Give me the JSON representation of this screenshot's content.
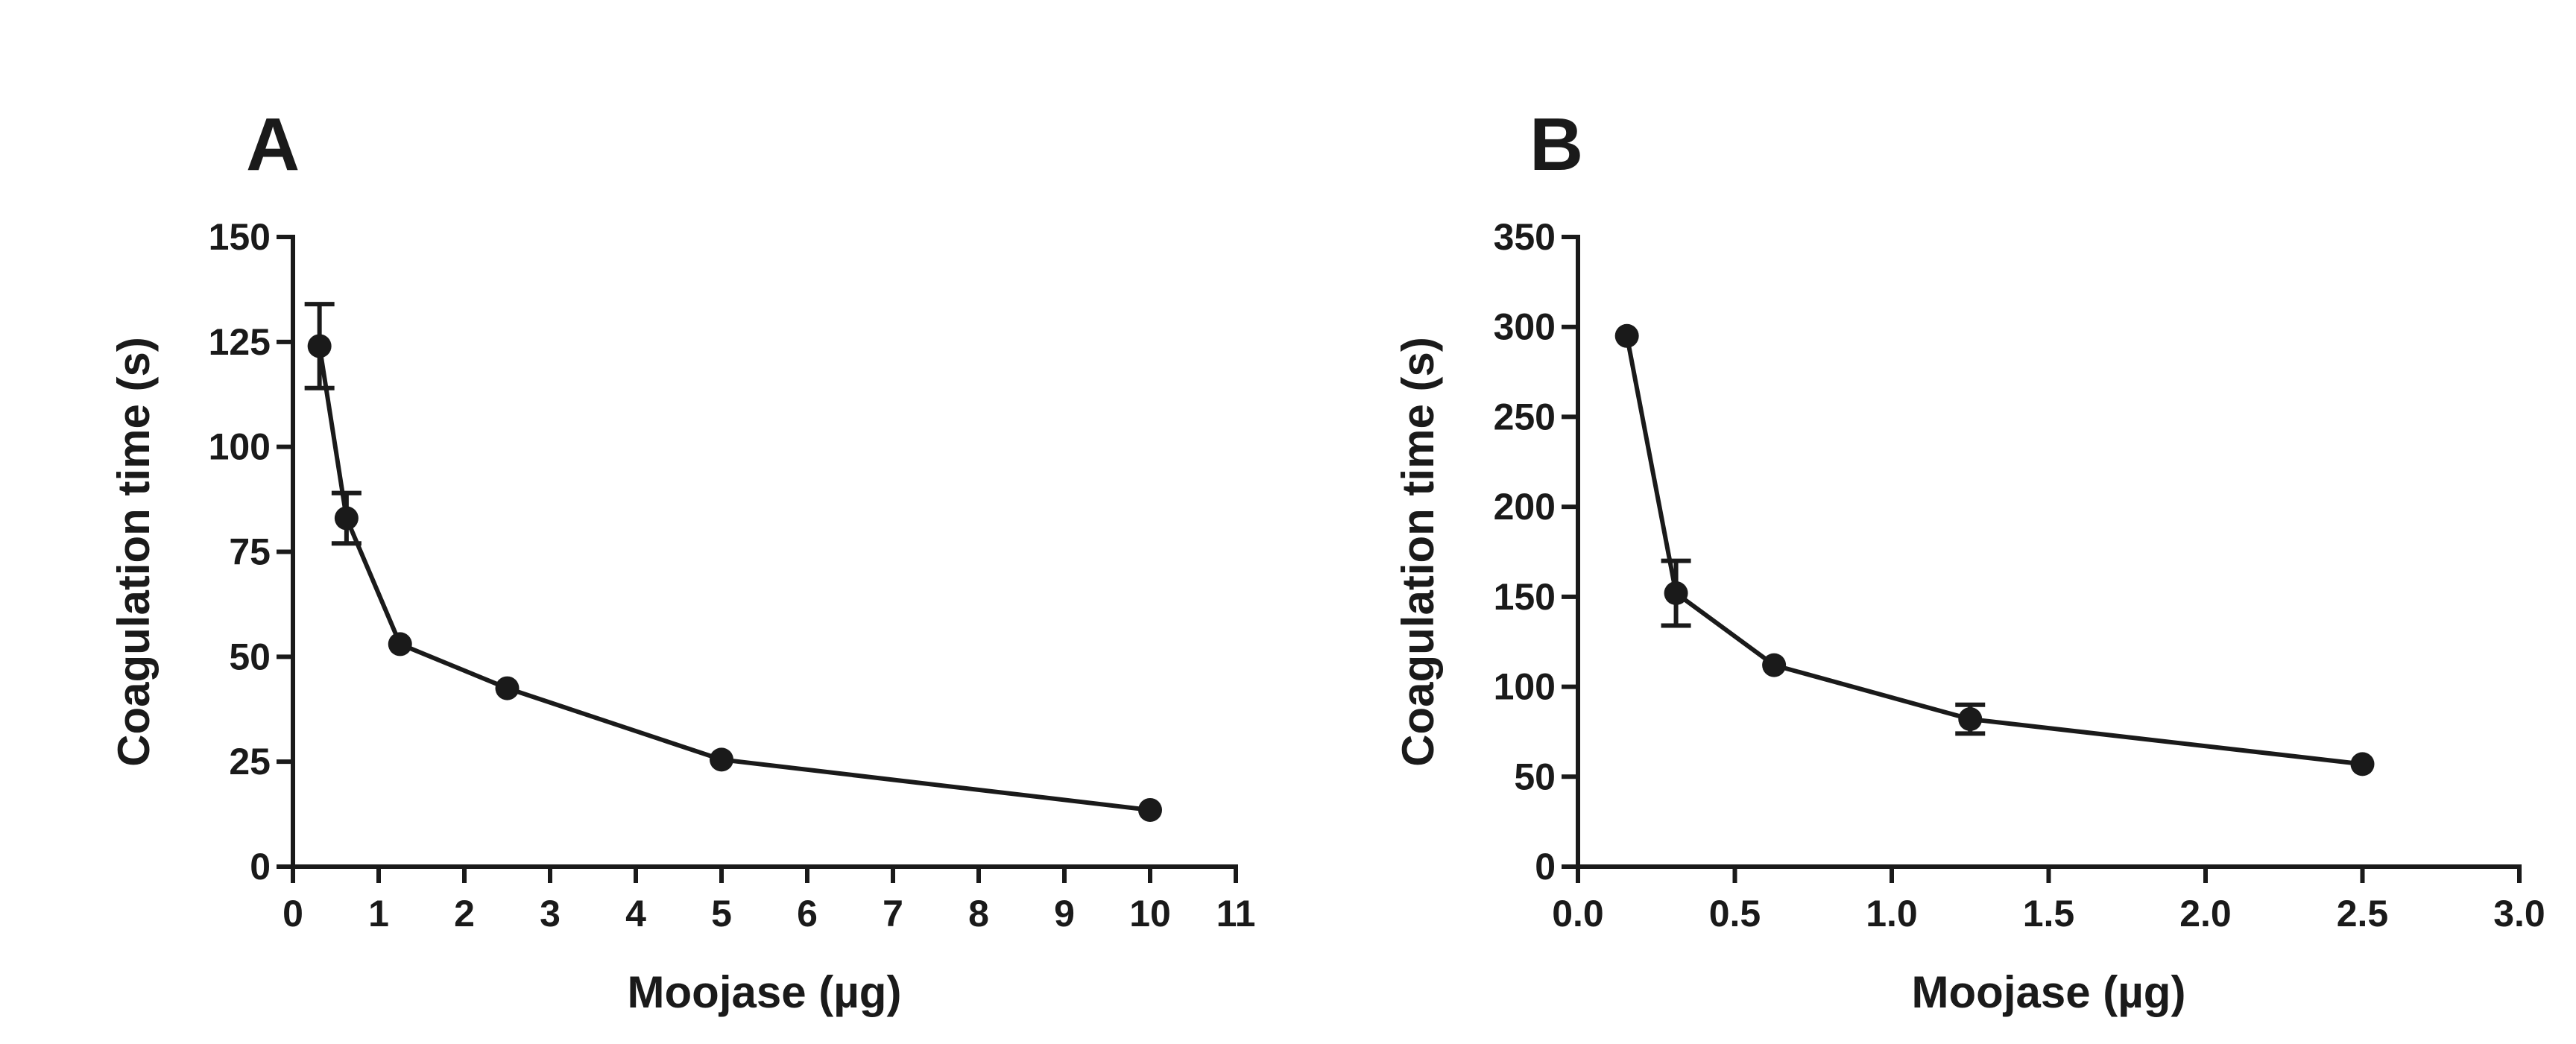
{
  "chart_data": [
    {
      "type": "line",
      "panel": "A",
      "title": "",
      "xlabel": "Moojase (µg)",
      "ylabel": "Coagulation time (s)",
      "xlim": [
        0,
        11
      ],
      "ylim": [
        0,
        150
      ],
      "xticks": [
        0,
        1,
        2,
        3,
        4,
        5,
        6,
        7,
        8,
        9,
        10,
        11
      ],
      "xtick_labels": [
        "0",
        "1",
        "2",
        "3",
        "4",
        "5",
        "6",
        "7",
        "8",
        "9",
        "10",
        "11"
      ],
      "yticks": [
        0,
        25,
        50,
        75,
        100,
        125,
        150
      ],
      "ytick_labels": [
        "0",
        "25",
        "50",
        "75",
        "100",
        "125",
        "150"
      ],
      "grid": false,
      "series": [
        {
          "name": "Moojase",
          "x": [
            0.31,
            0.625,
            1.25,
            2.5,
            5,
            10
          ],
          "y": [
            124,
            83,
            53,
            42.5,
            25.5,
            13.5
          ],
          "err": [
            10,
            6,
            0,
            0,
            0,
            0
          ]
        }
      ]
    },
    {
      "type": "line",
      "panel": "B",
      "title": "",
      "xlabel": "Moojase (µg)",
      "ylabel": "Coagulation time (s)",
      "xlim": [
        0,
        3.0
      ],
      "ylim": [
        0,
        350
      ],
      "xticks": [
        0,
        0.5,
        1.0,
        1.5,
        2.0,
        2.5,
        3.0
      ],
      "xtick_labels": [
        "0.0",
        "0.5",
        "1.0",
        "1.5",
        "2.0",
        "2.5",
        "3.0"
      ],
      "yticks": [
        0,
        50,
        100,
        150,
        200,
        250,
        300,
        350
      ],
      "ytick_labels": [
        "0",
        "50",
        "100",
        "150",
        "200",
        "250",
        "300",
        "350"
      ],
      "grid": false,
      "series": [
        {
          "name": "Moojase",
          "x": [
            0.156,
            0.3125,
            0.625,
            1.25,
            2.5
          ],
          "y": [
            295,
            152,
            112,
            82,
            57
          ],
          "err": [
            0,
            18,
            0,
            8,
            0
          ]
        }
      ]
    }
  ]
}
